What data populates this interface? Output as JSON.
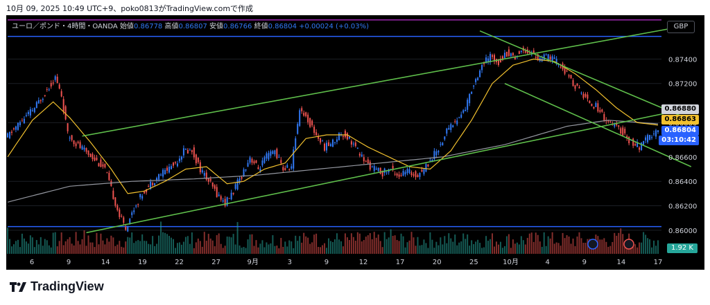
{
  "caption": "10月 09, 2025 10:49 UTC+9、poko0813がTradingView.comで作成",
  "legend": {
    "symbol": "ユーロ／ポンド・4時間・OANDA",
    "open_label": "始値",
    "open": "0.86778",
    "high_label": "高値",
    "high": "0.86807",
    "low_label": "安値",
    "low": "0.86766",
    "close_label": "終値",
    "close": "0.86804",
    "change": "+0.00024 (+0.03%)"
  },
  "currency": "GBP",
  "price_badges": {
    "level_1": "0.86880",
    "ma_value": "0.86863",
    "last_price": "0.86804",
    "countdown": "03:10:42"
  },
  "volume_badge": "1.92 K",
  "brand": "TradingView",
  "colors": {
    "up": "#3179f5",
    "down": "#ef5350",
    "vol_up": "#26a69a",
    "vol_down": "#ef5350",
    "channel": "#5fbf4b",
    "ma_fast": "#f2c12e",
    "ma_slow": "#9598a1",
    "hline_blue": "#2962ff",
    "hline_purple": "#9c27b0",
    "background": "#000000"
  },
  "chart_data": {
    "type": "candlestick",
    "y_range": [
      0.8596,
      0.876
    ],
    "y_ticks": [
      "0.87400",
      "0.87200",
      "0.86880",
      "0.86600",
      "0.86400",
      "0.86200",
      "0.86000"
    ],
    "x_ticks": [
      "6",
      "9",
      "14",
      "19",
      "22",
      "27",
      "9月",
      "3",
      "9",
      "12",
      "17",
      "20",
      "25",
      "10月",
      "4",
      "9",
      "14",
      "17"
    ],
    "horizontal_lines": [
      0.87585,
      0.8603,
      0.8772
    ],
    "close_path": [
      [
        0,
        0.8675
      ],
      [
        8,
        0.869
      ],
      [
        14,
        0.87
      ],
      [
        20,
        0.8715
      ],
      [
        24,
        0.8725
      ],
      [
        27,
        0.871
      ],
      [
        30,
        0.8678
      ],
      [
        36,
        0.8668
      ],
      [
        42,
        0.866
      ],
      [
        48,
        0.865
      ],
      [
        52,
        0.8628
      ],
      [
        55,
        0.8612
      ],
      [
        58,
        0.8602
      ],
      [
        62,
        0.8618
      ],
      [
        66,
        0.863
      ],
      [
        70,
        0.8638
      ],
      [
        74,
        0.8645
      ],
      [
        78,
        0.865
      ],
      [
        82,
        0.8655
      ],
      [
        86,
        0.8665
      ],
      [
        90,
        0.8665
      ],
      [
        94,
        0.865
      ],
      [
        98,
        0.864
      ],
      [
        102,
        0.863
      ],
      [
        106,
        0.8622
      ],
      [
        110,
        0.8632
      ],
      [
        114,
        0.8645
      ],
      [
        118,
        0.866
      ],
      [
        122,
        0.865
      ],
      [
        126,
        0.866
      ],
      [
        130,
        0.8665
      ],
      [
        134,
        0.865
      ],
      [
        138,
        0.8652
      ],
      [
        142,
        0.87
      ],
      [
        146,
        0.869
      ],
      [
        150,
        0.8678
      ],
      [
        154,
        0.8668
      ],
      [
        158,
        0.8672
      ],
      [
        162,
        0.868
      ],
      [
        166,
        0.8675
      ],
      [
        170,
        0.8665
      ],
      [
        174,
        0.8655
      ],
      [
        178,
        0.865
      ],
      [
        182,
        0.8647
      ],
      [
        186,
        0.865
      ],
      [
        190,
        0.8645
      ],
      [
        194,
        0.8648
      ],
      [
        198,
        0.8645
      ],
      [
        202,
        0.865
      ],
      [
        206,
        0.866
      ],
      [
        210,
        0.867
      ],
      [
        214,
        0.8685
      ],
      [
        218,
        0.869
      ],
      [
        222,
        0.87
      ],
      [
        226,
        0.872
      ],
      [
        230,
        0.8735
      ],
      [
        234,
        0.8742
      ],
      [
        238,
        0.8738
      ],
      [
        242,
        0.8745
      ],
      [
        246,
        0.8742
      ],
      [
        250,
        0.8748
      ],
      [
        254,
        0.8745
      ],
      [
        258,
        0.874
      ],
      [
        262,
        0.8742
      ],
      [
        266,
        0.8738
      ],
      [
        270,
        0.873
      ],
      [
        274,
        0.872
      ],
      [
        278,
        0.8712
      ],
      [
        282,
        0.8705
      ],
      [
        286,
        0.87
      ],
      [
        290,
        0.869
      ],
      [
        294,
        0.8685
      ],
      [
        298,
        0.868
      ],
      [
        302,
        0.8672
      ],
      [
        306,
        0.8668
      ],
      [
        310,
        0.8675
      ],
      [
        314,
        0.868
      ]
    ],
    "ma_fast_path": [
      [
        0,
        0.866
      ],
      [
        12,
        0.869
      ],
      [
        22,
        0.8705
      ],
      [
        30,
        0.8692
      ],
      [
        40,
        0.8672
      ],
      [
        50,
        0.865
      ],
      [
        58,
        0.863
      ],
      [
        66,
        0.8632
      ],
      [
        76,
        0.864
      ],
      [
        86,
        0.865
      ],
      [
        96,
        0.8652
      ],
      [
        106,
        0.8638
      ],
      [
        114,
        0.864
      ],
      [
        124,
        0.865
      ],
      [
        134,
        0.8655
      ],
      [
        144,
        0.8675
      ],
      [
        154,
        0.8678
      ],
      [
        164,
        0.8678
      ],
      [
        174,
        0.8668
      ],
      [
        184,
        0.866
      ],
      [
        194,
        0.8652
      ],
      [
        204,
        0.865
      ],
      [
        214,
        0.8665
      ],
      [
        224,
        0.869
      ],
      [
        234,
        0.872
      ],
      [
        244,
        0.8735
      ],
      [
        254,
        0.874
      ],
      [
        264,
        0.8738
      ],
      [
        274,
        0.8728
      ],
      [
        284,
        0.8715
      ],
      [
        294,
        0.87
      ],
      [
        304,
        0.8688
      ],
      [
        314,
        0.8686
      ]
    ],
    "ma_slow_path": [
      [
        0,
        0.8623
      ],
      [
        30,
        0.8636
      ],
      [
        60,
        0.864
      ],
      [
        90,
        0.8642
      ],
      [
        120,
        0.8645
      ],
      [
        150,
        0.865
      ],
      [
        180,
        0.8655
      ],
      [
        210,
        0.866
      ],
      [
        240,
        0.867
      ],
      [
        270,
        0.8685
      ],
      [
        290,
        0.869
      ],
      [
        314,
        0.8687
      ]
    ],
    "channel_lines": [
      {
        "from": [
          36,
          0.8677
        ],
        "to": [
          330,
          0.8768
        ]
      },
      {
        "from": [
          38,
          0.8598
        ],
        "to": [
          330,
          0.87
        ]
      },
      {
        "from": [
          228,
          0.8763
        ],
        "to": [
          330,
          0.869
        ]
      },
      {
        "from": [
          240,
          0.872
        ],
        "to": [
          330,
          0.8652
        ]
      }
    ],
    "n_bars": 315
  }
}
